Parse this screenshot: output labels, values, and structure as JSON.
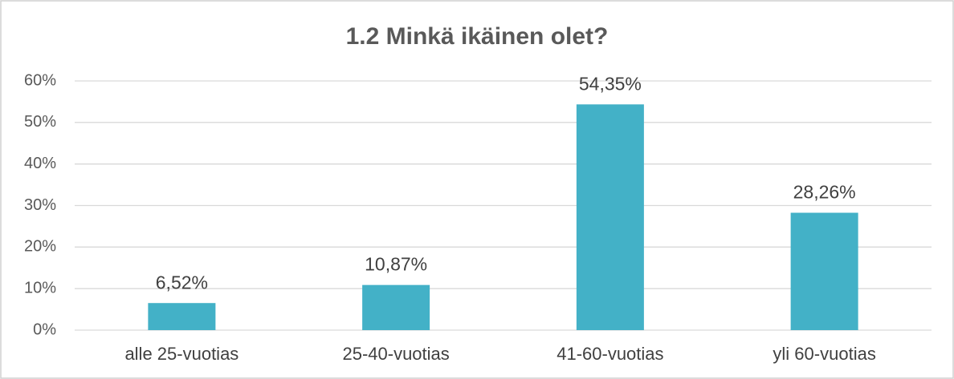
{
  "chart_data": {
    "type": "bar",
    "title": "1.2 Minkä ikäinen olet?",
    "categories": [
      "alle 25-vuotias",
      "25-40-vuotias",
      "41-60-vuotias",
      "yli 60-vuotias"
    ],
    "values": [
      6.52,
      10.87,
      54.35,
      28.26
    ],
    "value_labels": [
      "6,52%",
      "10,87%",
      "54,35%",
      "28,26%"
    ],
    "color": "#43b1c7",
    "ylim": [
      0,
      60
    ],
    "yticks": [
      {
        "value": 0,
        "label": "0%"
      },
      {
        "value": 10,
        "label": "10%"
      },
      {
        "value": 20,
        "label": "20%"
      },
      {
        "value": 30,
        "label": "30%"
      },
      {
        "value": 40,
        "label": "40%"
      },
      {
        "value": 50,
        "label": "50%"
      },
      {
        "value": 60,
        "label": "60%"
      }
    ],
    "grid": true
  }
}
